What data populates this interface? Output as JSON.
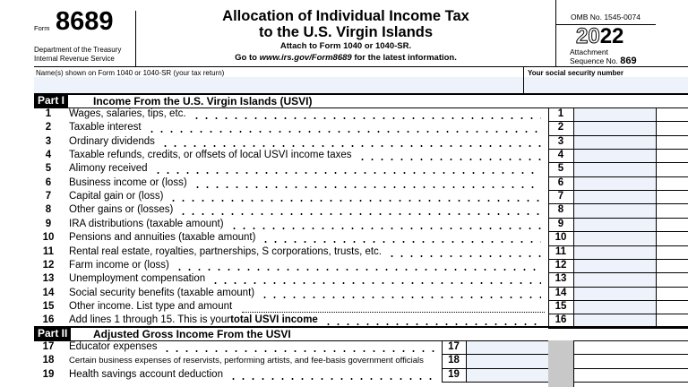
{
  "header": {
    "form_label": "Form",
    "form_number": "8689",
    "dept": "Department of the Treasury",
    "irs": "Internal Revenue Service",
    "title_line1": "Allocation of Individual Income Tax",
    "title_line2": "to the U.S. Virgin Islands",
    "attach": "Attach to Form 1040 or 1040-SR.",
    "goto_pre": "Go to ",
    "goto_url": "www.irs.gov/Form8689",
    "goto_post": " for the latest information.",
    "omb": "OMB No. 1545-0074",
    "year_prefix": "20",
    "year_suffix": "22",
    "attachment": "Attachment",
    "sequence": "Sequence No.",
    "sequence_no": "869"
  },
  "name_row": {
    "name_label": "Name(s) shown on Form 1040 or 1040-SR (your tax return)",
    "ssn_label": "Your social security number"
  },
  "part1": {
    "tag": "Part I",
    "title": "Income From the U.S. Virgin Islands (USVI)",
    "lines": [
      {
        "num": "1",
        "text": "Wages, salaries, tips, etc.",
        "box": "1"
      },
      {
        "num": "2",
        "text": "Taxable interest",
        "box": "2"
      },
      {
        "num": "3",
        "text": "Ordinary dividends",
        "box": "3"
      },
      {
        "num": "4",
        "text": "Taxable refunds, credits, or offsets of local USVI income taxes",
        "box": "4"
      },
      {
        "num": "5",
        "text": "Alimony received",
        "box": "5"
      },
      {
        "num": "6",
        "text": "Business income or (loss)",
        "box": "6"
      },
      {
        "num": "7",
        "text": "Capital gain or (loss)",
        "box": "7"
      },
      {
        "num": "8",
        "text": "Other gains or (losses)",
        "box": "8"
      },
      {
        "num": "9",
        "text": "IRA distributions (taxable amount)",
        "box": "9"
      },
      {
        "num": "10",
        "text": "Pensions and annuities (taxable amount)",
        "box": "10"
      },
      {
        "num": "11",
        "text": "Rental real estate, royalties, partnerships, S corporations, trusts, etc.",
        "box": "11"
      },
      {
        "num": "12",
        "text": "Farm income or (loss)",
        "box": "12"
      },
      {
        "num": "13",
        "text": "Unemployment compensation",
        "box": "13"
      },
      {
        "num": "14",
        "text": "Social security benefits (taxable amount)",
        "box": "14"
      },
      {
        "num": "15",
        "text": "Other income. List type and amount",
        "box": "15"
      },
      {
        "num": "16",
        "text": "Add lines 1 through 15. This is your ",
        "bold": "total USVI income",
        "box": "16"
      }
    ]
  },
  "part2": {
    "tag": "Part II",
    "title": "Adjusted Gross Income From the USVI",
    "lines": [
      {
        "num": "17",
        "text": "Educator expenses",
        "box": "17"
      },
      {
        "num": "18",
        "text": "Certain business expenses of reservists, performing artists, and fee-basis government officials",
        "box": "18"
      },
      {
        "num": "19",
        "text": "Health savings account deduction",
        "box": "19"
      }
    ]
  }
}
